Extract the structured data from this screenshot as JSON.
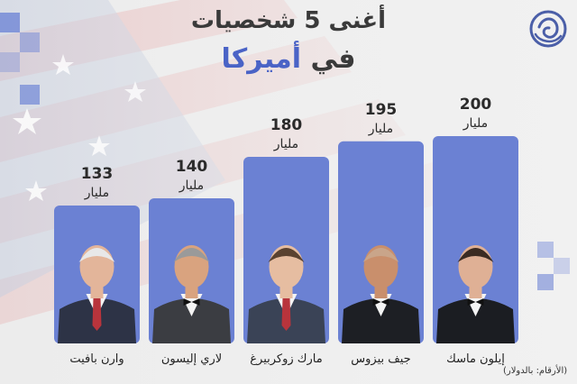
{
  "title": {
    "line1": "أغنى 5 شخصيات",
    "line2_a": "في",
    "line2_b": "أميركا"
  },
  "footnote": "(الأرقام: بالدولار)",
  "colors": {
    "bar": "#6b81d3",
    "accent": "#4a63c6",
    "text": "#2b2b2b"
  },
  "logo": {
    "icon": "al-jazeera-logo"
  },
  "chart_data": {
    "type": "bar",
    "unit_label": "مليار",
    "categories": [
      "وارن بافيت",
      "لاري إليسون",
      "مارك زوكربيرغ",
      "جيف بيزوس",
      "إيلون ماسك"
    ],
    "values": [
      133,
      140,
      180,
      195,
      200
    ],
    "photos": [
      "portrait-warren-buffett",
      "portrait-larry-ellison",
      "portrait-mark-zuckerberg",
      "portrait-jeff-bezos",
      "portrait-elon-musk"
    ]
  }
}
